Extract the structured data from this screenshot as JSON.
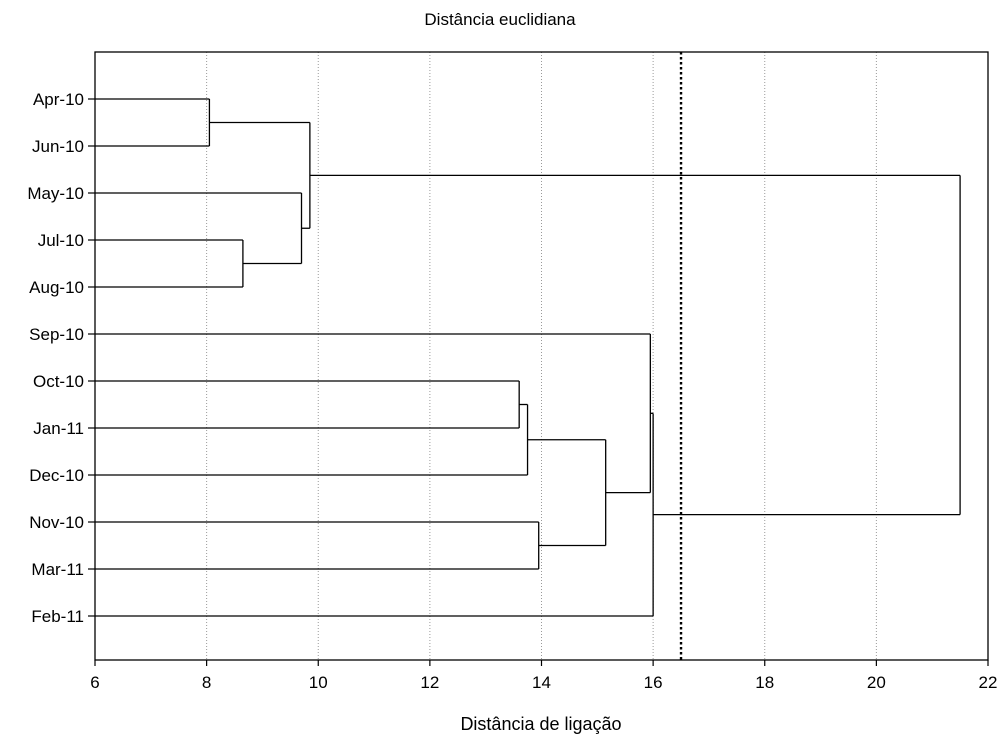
{
  "chart_data": {
    "type": "dendrogram",
    "title": "Distância euclidiana",
    "xlabel": "Distância de ligação",
    "ylabel": "",
    "xlim": [
      6,
      22
    ],
    "x_ticks": [
      6,
      8,
      10,
      12,
      14,
      16,
      18,
      20,
      22
    ],
    "grid": true,
    "cutoff_line": 16.5,
    "leaves": [
      "Apr-10",
      "Jun-10",
      "May-10",
      "Jul-10",
      "Aug-10",
      "Sep-10",
      "Oct-10",
      "Jan-11",
      "Dec-10",
      "Nov-10",
      "Mar-11",
      "Feb-11"
    ],
    "merges": [
      {
        "id": "c1",
        "children": [
          "Apr-10",
          "Jun-10"
        ],
        "height": 8.05
      },
      {
        "id": "c2",
        "children": [
          "Jul-10",
          "Aug-10"
        ],
        "height": 8.65
      },
      {
        "id": "c3",
        "children": [
          "May-10",
          "c2"
        ],
        "height": 9.7
      },
      {
        "id": "c4",
        "children": [
          "c1",
          "c3"
        ],
        "height": 9.85
      },
      {
        "id": "c5",
        "children": [
          "Oct-10",
          "Jan-11"
        ],
        "height": 13.6
      },
      {
        "id": "c6",
        "children": [
          "c5",
          "Dec-10"
        ],
        "height": 13.75
      },
      {
        "id": "c7",
        "children": [
          "Nov-10",
          "Mar-11"
        ],
        "height": 13.95
      },
      {
        "id": "c8",
        "children": [
          "c6",
          "c7"
        ],
        "height": 15.15
      },
      {
        "id": "c9",
        "children": [
          "Sep-10",
          "c8"
        ],
        "height": 15.95
      },
      {
        "id": "c10",
        "children": [
          "c9",
          "Feb-11"
        ],
        "height": 16.0
      },
      {
        "id": "c11",
        "children": [
          "c4",
          "c10"
        ],
        "height": 21.5
      }
    ]
  },
  "colors": {
    "line": "#000000",
    "grid": "#9a9a9a",
    "background": "#ffffff"
  }
}
